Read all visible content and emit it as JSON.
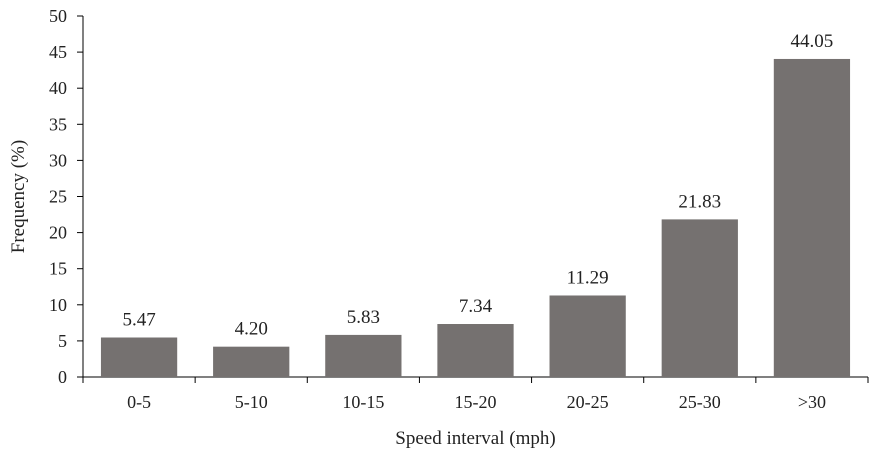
{
  "chart_data": {
    "type": "bar",
    "title": "",
    "xlabel": "Speed interval (mph)",
    "ylabel": "Frequency (%)",
    "categories": [
      "0-5",
      "5-10",
      "10-15",
      "15-20",
      "20-25",
      "25-30",
      ">30"
    ],
    "values": [
      5.47,
      4.2,
      5.83,
      7.34,
      11.29,
      21.83,
      44.05
    ],
    "data_labels": [
      "5.47",
      "4.20",
      "5.83",
      "7.34",
      "11.29",
      "21.83",
      "44.05"
    ],
    "ylim": [
      0,
      50
    ],
    "yticks": [
      0,
      5,
      10,
      15,
      20,
      25,
      30,
      35,
      40,
      45,
      50
    ],
    "grid": false,
    "legend": "none",
    "bar_color": "#757170",
    "axis_color": "#000000"
  }
}
